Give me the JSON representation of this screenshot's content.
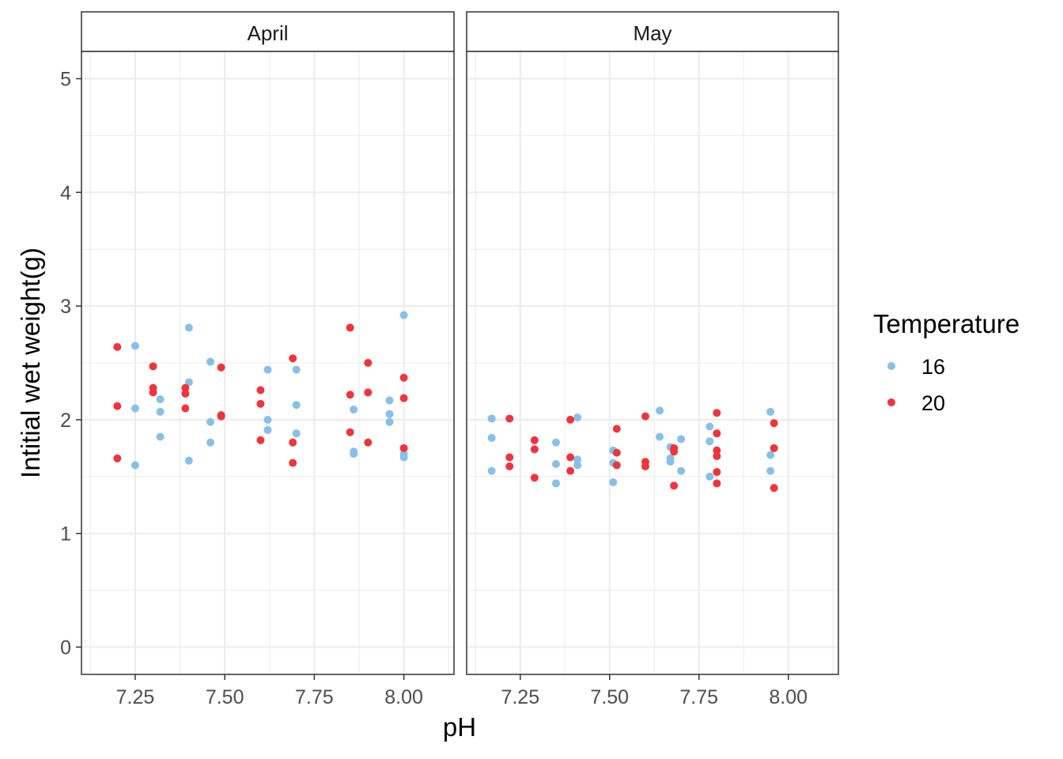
{
  "chart_data": {
    "type": "scatter",
    "xlabel": "pH",
    "ylabel": "Intitial wet weight(g)",
    "xlim": [
      7.1,
      8.14
    ],
    "ylim": [
      -0.24,
      5.24
    ],
    "x_ticks": [
      "7.25",
      "7.50",
      "7.75",
      "8.00"
    ],
    "x_tick_values": [
      7.25,
      7.5,
      7.75,
      8.0
    ],
    "y_ticks": [
      "0",
      "1",
      "2",
      "3",
      "4",
      "5"
    ],
    "y_tick_values": [
      0,
      1,
      2,
      3,
      4,
      5
    ],
    "grid": true,
    "legend": {
      "title": "Temperature",
      "position": "right",
      "entries": [
        {
          "label": "16",
          "color": "#85C1E9"
        },
        {
          "label": "20",
          "color": "#F1343A"
        }
      ]
    },
    "panels": [
      {
        "strip": "April",
        "series": [
          {
            "name": "16",
            "points": [
              [
                7.25,
                2.65
              ],
              [
                7.25,
                2.1
              ],
              [
                7.25,
                1.6
              ],
              [
                7.32,
                2.18
              ],
              [
                7.32,
                2.07
              ],
              [
                7.32,
                1.85
              ],
              [
                7.4,
                2.81
              ],
              [
                7.4,
                2.33
              ],
              [
                7.4,
                1.64
              ],
              [
                7.46,
                2.51
              ],
              [
                7.46,
                1.98
              ],
              [
                7.46,
                1.8
              ],
              [
                7.62,
                2.44
              ],
              [
                7.62,
                2.0
              ],
              [
                7.62,
                1.91
              ],
              [
                7.7,
                2.44
              ],
              [
                7.7,
                2.13
              ],
              [
                7.7,
                1.88
              ],
              [
                7.86,
                2.09
              ],
              [
                7.86,
                1.72
              ],
              [
                7.86,
                1.7
              ],
              [
                7.96,
                2.17
              ],
              [
                7.96,
                2.05
              ],
              [
                7.96,
                1.98
              ],
              [
                8.0,
                2.92
              ],
              [
                8.0,
                1.7
              ],
              [
                8.0,
                1.67
              ]
            ]
          },
          {
            "name": "20",
            "points": [
              [
                7.2,
                2.64
              ],
              [
                7.2,
                2.12
              ],
              [
                7.2,
                1.66
              ],
              [
                7.3,
                2.47
              ],
              [
                7.3,
                2.28
              ],
              [
                7.3,
                2.24
              ],
              [
                7.39,
                2.28
              ],
              [
                7.39,
                2.23
              ],
              [
                7.39,
                2.1
              ],
              [
                7.49,
                2.46
              ],
              [
                7.49,
                2.04
              ],
              [
                7.49,
                2.03
              ],
              [
                7.6,
                2.26
              ],
              [
                7.6,
                2.14
              ],
              [
                7.6,
                1.82
              ],
              [
                7.69,
                2.54
              ],
              [
                7.69,
                1.8
              ],
              [
                7.69,
                1.62
              ],
              [
                7.85,
                2.81
              ],
              [
                7.85,
                2.22
              ],
              [
                7.85,
                1.89
              ],
              [
                7.9,
                2.5
              ],
              [
                7.9,
                2.24
              ],
              [
                7.9,
                1.8
              ],
              [
                8.0,
                2.37
              ],
              [
                8.0,
                2.19
              ],
              [
                8.0,
                1.75
              ]
            ]
          }
        ]
      },
      {
        "strip": "May",
        "series": [
          {
            "name": "16",
            "points": [
              [
                7.17,
                2.01
              ],
              [
                7.17,
                1.84
              ],
              [
                7.17,
                1.55
              ],
              [
                7.35,
                1.8
              ],
              [
                7.35,
                1.61
              ],
              [
                7.35,
                1.44
              ],
              [
                7.41,
                2.02
              ],
              [
                7.41,
                1.65
              ],
              [
                7.41,
                1.6
              ],
              [
                7.51,
                1.73
              ],
              [
                7.51,
                1.62
              ],
              [
                7.51,
                1.45
              ],
              [
                7.64,
                2.08
              ],
              [
                7.64,
                1.85
              ],
              [
                7.67,
                1.76
              ],
              [
                7.67,
                1.66
              ],
              [
                7.67,
                1.63
              ],
              [
                7.7,
                1.83
              ],
              [
                7.7,
                1.55
              ],
              [
                7.78,
                1.94
              ],
              [
                7.78,
                1.81
              ],
              [
                7.78,
                1.5
              ],
              [
                7.95,
                2.07
              ],
              [
                7.95,
                1.69
              ],
              [
                7.95,
                1.55
              ]
            ]
          },
          {
            "name": "20",
            "points": [
              [
                7.22,
                2.01
              ],
              [
                7.22,
                1.67
              ],
              [
                7.22,
                1.59
              ],
              [
                7.29,
                1.82
              ],
              [
                7.29,
                1.74
              ],
              [
                7.29,
                1.49
              ],
              [
                7.39,
                2.0
              ],
              [
                7.39,
                1.67
              ],
              [
                7.39,
                1.55
              ],
              [
                7.52,
                1.92
              ],
              [
                7.52,
                1.71
              ],
              [
                7.52,
                1.6
              ],
              [
                7.6,
                2.03
              ],
              [
                7.6,
                1.63
              ],
              [
                7.6,
                1.59
              ],
              [
                7.68,
                1.75
              ],
              [
                7.68,
                1.72
              ],
              [
                7.68,
                1.42
              ],
              [
                7.8,
                2.06
              ],
              [
                7.8,
                1.88
              ],
              [
                7.8,
                1.73
              ],
              [
                7.8,
                1.68
              ],
              [
                7.8,
                1.54
              ],
              [
                7.8,
                1.44
              ],
              [
                7.96,
                1.97
              ],
              [
                7.96,
                1.75
              ],
              [
                7.96,
                1.4
              ]
            ]
          }
        ]
      }
    ]
  }
}
